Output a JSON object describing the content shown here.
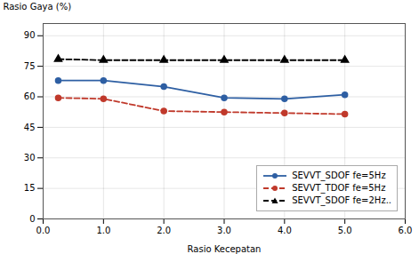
{
  "chart_data": {
    "type": "line",
    "xlabel": "Rasio Kecepatan",
    "ylabel": "Rasio Gaya (%)",
    "x": [
      0.25,
      1,
      2,
      3,
      4,
      5
    ],
    "series": [
      {
        "name": "SEVVT_SDOF fe=5Hz",
        "color": "#2e5fa3",
        "values": [
          68,
          68,
          65,
          59.5,
          59,
          61
        ],
        "marker": "circle",
        "line_style": "solid"
      },
      {
        "name": "SEVVT_TDOF fe=5Hz",
        "color": "#c0392b",
        "values": [
          59.5,
          59,
          53,
          52.5,
          52,
          51.5
        ],
        "marker": "circle",
        "line_style": "dashed"
      },
      {
        "name": "SEVVT_SDOF fe=2Hz..",
        "color": "#000000",
        "values": [
          78.5,
          78,
          78,
          78,
          78,
          78
        ],
        "marker": "triangle",
        "line_style": "dashed"
      }
    ],
    "xlim": [
      0,
      6
    ],
    "ylim": [
      0,
      96
    ],
    "xticks": [
      0,
      1,
      2,
      3,
      4,
      5,
      6
    ],
    "yticks": [
      0,
      15,
      30,
      45,
      60,
      75,
      90
    ],
    "grid": true,
    "legend": "lower right"
  }
}
